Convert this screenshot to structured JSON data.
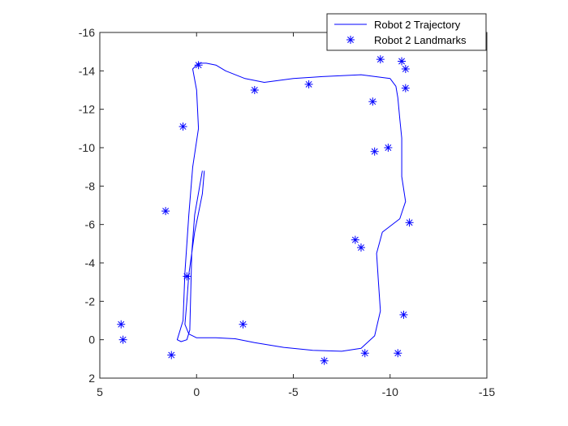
{
  "chart_data": {
    "type": "line",
    "title": "",
    "xlabel": "",
    "ylabel": "",
    "xlim": [
      5,
      -15
    ],
    "ylim": [
      2,
      -16
    ],
    "x_reversed": true,
    "y_reversed": true,
    "xticks": [
      5,
      0,
      -5,
      -10,
      -15
    ],
    "yticks": [
      -16,
      -14,
      -12,
      -10,
      -8,
      -6,
      -4,
      -2,
      0,
      2
    ],
    "xtick_labels": [
      "5",
      "0",
      "-5",
      "-10",
      "-15"
    ],
    "ytick_labels": [
      "-16",
      "-14",
      "-12",
      "-10",
      "-8",
      "-6",
      "-4",
      "-2",
      "0",
      "2"
    ],
    "grid": false,
    "legend_position": "top-right",
    "colors": {
      "trajectory": "#0000ff",
      "landmarks": "#0000ff",
      "axes": "#262626"
    },
    "series": [
      {
        "name": "Robot 2 Trajectory",
        "style": "line",
        "points": [
          [
            -0.4,
            -8.8
          ],
          [
            -0.3,
            -7.6
          ],
          [
            0.1,
            -5.6
          ],
          [
            0.4,
            -3.4
          ],
          [
            0.5,
            -2.0
          ],
          [
            0.6,
            -0.8
          ],
          [
            0.4,
            -0.3
          ],
          [
            0.0,
            -0.1
          ],
          [
            -1.0,
            -0.1
          ],
          [
            -2.0,
            -0.05
          ],
          [
            -3.0,
            0.15
          ],
          [
            -4.5,
            0.4
          ],
          [
            -6.0,
            0.55
          ],
          [
            -7.5,
            0.6
          ],
          [
            -8.5,
            0.45
          ],
          [
            -9.2,
            -0.2
          ],
          [
            -9.5,
            -1.5
          ],
          [
            -9.4,
            -3.0
          ],
          [
            -9.3,
            -4.5
          ],
          [
            -9.6,
            -5.6
          ],
          [
            -10.5,
            -6.3
          ],
          [
            -10.8,
            -7.2
          ],
          [
            -10.6,
            -8.5
          ],
          [
            -10.6,
            -10.5
          ],
          [
            -10.5,
            -11.5
          ],
          [
            -10.4,
            -12.6
          ],
          [
            -10.3,
            -13.2
          ],
          [
            -10.0,
            -13.6
          ],
          [
            -8.5,
            -13.8
          ],
          [
            -6.5,
            -13.7
          ],
          [
            -5.0,
            -13.6
          ],
          [
            -3.5,
            -13.4
          ],
          [
            -2.5,
            -13.6
          ],
          [
            -1.5,
            -14.0
          ],
          [
            -1.0,
            -14.3
          ],
          [
            -0.5,
            -14.4
          ],
          [
            -0.1,
            -14.4
          ],
          [
            0.2,
            -14.1
          ],
          [
            0.0,
            -13.0
          ],
          [
            -0.1,
            -11.0
          ],
          [
            0.2,
            -9.0
          ],
          [
            0.4,
            -6.5
          ],
          [
            0.6,
            -3.5
          ],
          [
            0.7,
            -1.0
          ],
          [
            1.0,
            0.0
          ],
          [
            0.8,
            0.1
          ],
          [
            0.5,
            0.0
          ],
          [
            0.35,
            -0.5
          ],
          [
            0.3,
            -2.5
          ],
          [
            0.25,
            -4.5
          ],
          [
            0.1,
            -6.5
          ],
          [
            -0.3,
            -8.8
          ]
        ]
      },
      {
        "name": "Robot 2 Landmarks",
        "style": "marker",
        "marker": "*",
        "points": [
          [
            -0.1,
            -14.3
          ],
          [
            -3.0,
            -13.0
          ],
          [
            -5.8,
            -13.3
          ],
          [
            -9.5,
            -14.6
          ],
          [
            -10.6,
            -14.5
          ],
          [
            -10.8,
            -14.1
          ],
          [
            -10.8,
            -13.1
          ],
          [
            -9.1,
            -12.4
          ],
          [
            0.7,
            -11.1
          ],
          [
            -9.9,
            -10.0
          ],
          [
            -9.2,
            -9.8
          ],
          [
            1.6,
            -6.7
          ],
          [
            -11.0,
            -6.1
          ],
          [
            -8.2,
            -5.2
          ],
          [
            -8.5,
            -4.8
          ],
          [
            0.5,
            -3.3
          ],
          [
            -10.7,
            -1.3
          ],
          [
            3.9,
            -0.8
          ],
          [
            -2.4,
            -0.8
          ],
          [
            3.8,
            0.0
          ],
          [
            1.3,
            0.8
          ],
          [
            -8.7,
            0.7
          ],
          [
            -10.4,
            0.7
          ],
          [
            -6.6,
            1.1
          ]
        ]
      }
    ]
  }
}
